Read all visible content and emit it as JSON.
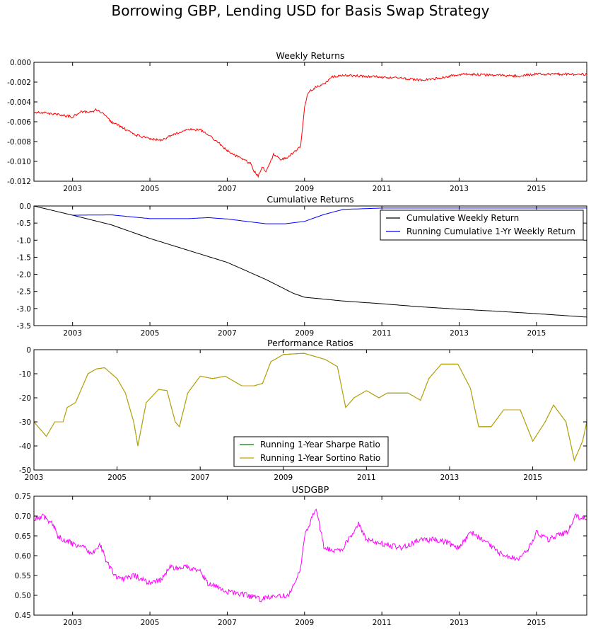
{
  "figure": {
    "title": "Borrowing GBP, Lending USD for Basis Swap Strategy"
  },
  "chart_data": [
    {
      "id": "p1",
      "type": "line",
      "title": "Weekly Returns",
      "xlim": [
        2002.0,
        2016.3
      ],
      "ylim": [
        -0.012,
        0.0
      ],
      "xticks": [
        2003,
        2005,
        2007,
        2009,
        2011,
        2013,
        2015
      ],
      "yticks": [
        0.0,
        -0.002,
        -0.004,
        -0.006,
        -0.008,
        -0.01,
        -0.012
      ],
      "ytick_labels": [
        "0.000",
        "-0.002",
        "-0.004",
        "-0.006",
        "-0.008",
        "-0.010",
        "-0.012"
      ],
      "legend": null,
      "series": [
        {
          "color": "#ff0000",
          "noise": 0.00012,
          "points": [
            [
              2002.0,
              -0.005
            ],
            [
              2002.5,
              -0.0052
            ],
            [
              2003.0,
              -0.0055
            ],
            [
              2003.2,
              -0.005
            ],
            [
              2003.5,
              -0.005
            ],
            [
              2003.6,
              -0.0048
            ],
            [
              2003.8,
              -0.0052
            ],
            [
              2004.0,
              -0.006
            ],
            [
              2004.3,
              -0.0066
            ],
            [
              2004.6,
              -0.0073
            ],
            [
              2005.0,
              -0.0077
            ],
            [
              2005.3,
              -0.0079
            ],
            [
              2005.6,
              -0.0073
            ],
            [
              2006.0,
              -0.0068
            ],
            [
              2006.3,
              -0.0068
            ],
            [
              2006.5,
              -0.0073
            ],
            [
              2006.8,
              -0.0082
            ],
            [
              2007.0,
              -0.0089
            ],
            [
              2007.3,
              -0.0096
            ],
            [
              2007.6,
              -0.0102
            ],
            [
              2007.7,
              -0.011
            ],
            [
              2007.8,
              -0.0115
            ],
            [
              2007.9,
              -0.0105
            ],
            [
              2008.0,
              -0.011
            ],
            [
              2008.2,
              -0.0093
            ],
            [
              2008.4,
              -0.0098
            ],
            [
              2008.6,
              -0.0095
            ],
            [
              2008.8,
              -0.0088
            ],
            [
              2008.9,
              -0.0085
            ],
            [
              2009.0,
              -0.0045
            ],
            [
              2009.1,
              -0.003
            ],
            [
              2009.3,
              -0.0025
            ],
            [
              2009.5,
              -0.0022
            ],
            [
              2009.7,
              -0.0015
            ],
            [
              2010.0,
              -0.0013
            ],
            [
              2011.0,
              -0.0015
            ],
            [
              2011.5,
              -0.0016
            ],
            [
              2012.0,
              -0.0018
            ],
            [
              2012.5,
              -0.0016
            ],
            [
              2013.0,
              -0.0012
            ],
            [
              2014.0,
              -0.0013
            ],
            [
              2014.5,
              -0.0014
            ],
            [
              2015.0,
              -0.0012
            ],
            [
              2016.3,
              -0.0012
            ]
          ]
        }
      ]
    },
    {
      "id": "p2",
      "type": "line",
      "title": "Cumulative Returns",
      "xlim": [
        2002.0,
        2016.3
      ],
      "ylim": [
        -3.5,
        0.0
      ],
      "xticks": [
        2003,
        2005,
        2007,
        2009,
        2011,
        2013,
        2015
      ],
      "yticks": [
        0.0,
        -0.5,
        -1.0,
        -1.5,
        -2.0,
        -2.5,
        -3.0,
        -3.5
      ],
      "ytick_labels": [
        "0.0",
        "-0.5",
        "-1.0",
        "-1.5",
        "-2.0",
        "-2.5",
        "-3.0",
        "-3.5"
      ],
      "legend": {
        "position": "upper-right"
      },
      "series": [
        {
          "name": "Cumulative Weekly Return",
          "color": "#000000",
          "noise": 0,
          "points": [
            [
              2002.0,
              0.0
            ],
            [
              2003.0,
              -0.27
            ],
            [
              2004.0,
              -0.55
            ],
            [
              2005.0,
              -0.95
            ],
            [
              2006.0,
              -1.3
            ],
            [
              2007.0,
              -1.65
            ],
            [
              2008.0,
              -2.15
            ],
            [
              2008.7,
              -2.55
            ],
            [
              2009.0,
              -2.67
            ],
            [
              2010.0,
              -2.78
            ],
            [
              2011.0,
              -2.86
            ],
            [
              2012.0,
              -2.95
            ],
            [
              2013.0,
              -3.02
            ],
            [
              2014.0,
              -3.08
            ],
            [
              2015.0,
              -3.15
            ],
            [
              2016.3,
              -3.25
            ]
          ]
        },
        {
          "name": "Running Cumulative 1-Yr Weekly Return",
          "color": "#0000ff",
          "noise": 0,
          "points": [
            [
              2003.0,
              -0.27
            ],
            [
              2004.0,
              -0.26
            ],
            [
              2005.0,
              -0.37
            ],
            [
              2006.0,
              -0.37
            ],
            [
              2006.5,
              -0.34
            ],
            [
              2007.0,
              -0.38
            ],
            [
              2008.0,
              -0.52
            ],
            [
              2008.5,
              -0.52
            ],
            [
              2009.0,
              -0.45
            ],
            [
              2009.5,
              -0.25
            ],
            [
              2010.0,
              -0.1
            ],
            [
              2011.0,
              -0.06
            ],
            [
              2016.3,
              -0.06
            ]
          ]
        }
      ]
    },
    {
      "id": "p3",
      "type": "line",
      "title": "Performance Ratios",
      "xlim": [
        2003.0,
        2016.3
      ],
      "ylim": [
        -50,
        0
      ],
      "xticks": [
        2003,
        2005,
        2007,
        2009,
        2011,
        2013,
        2015
      ],
      "yticks": [
        0,
        -10,
        -20,
        -30,
        -40,
        -50
      ],
      "ytick_labels": [
        "0",
        "-10",
        "-20",
        "-30",
        "-40",
        "-50"
      ],
      "legend": {
        "position": "lower-center"
      },
      "series": [
        {
          "name": "Running 1-Year Sharpe Ratio",
          "color": "#008000",
          "noise": 0,
          "points": [
            [
              2003.0,
              -30
            ],
            [
              2003.3,
              -36
            ],
            [
              2003.5,
              -30
            ],
            [
              2003.7,
              -30
            ],
            [
              2003.8,
              -24
            ],
            [
              2004.0,
              -22
            ],
            [
              2004.3,
              -10
            ],
            [
              2004.5,
              -8
            ],
            [
              2004.7,
              -7.5
            ],
            [
              2005.0,
              -12
            ],
            [
              2005.2,
              -18
            ],
            [
              2005.4,
              -30
            ],
            [
              2005.5,
              -40
            ],
            [
              2005.7,
              -22
            ],
            [
              2006.0,
              -16.5
            ],
            [
              2006.2,
              -17
            ],
            [
              2006.4,
              -30
            ],
            [
              2006.5,
              -32
            ],
            [
              2006.7,
              -18
            ],
            [
              2007.0,
              -11
            ],
            [
              2007.3,
              -12
            ],
            [
              2007.6,
              -11
            ],
            [
              2008.0,
              -15
            ],
            [
              2008.3,
              -15
            ],
            [
              2008.5,
              -14
            ],
            [
              2008.7,
              -5
            ],
            [
              2009.0,
              -2
            ],
            [
              2009.5,
              -1.5
            ],
            [
              2010.0,
              -4
            ],
            [
              2010.3,
              -7
            ],
            [
              2010.5,
              -24
            ],
            [
              2010.7,
              -20
            ],
            [
              2011.0,
              -17
            ],
            [
              2011.3,
              -20
            ],
            [
              2011.5,
              -18
            ],
            [
              2012.0,
              -18
            ],
            [
              2012.3,
              -21
            ],
            [
              2012.5,
              -12
            ],
            [
              2012.8,
              -6
            ],
            [
              2013.2,
              -6
            ],
            [
              2013.5,
              -16
            ],
            [
              2013.7,
              -32
            ],
            [
              2014.0,
              -32
            ],
            [
              2014.3,
              -25
            ],
            [
              2014.7,
              -25
            ],
            [
              2015.0,
              -38
            ],
            [
              2015.3,
              -30
            ],
            [
              2015.5,
              -23
            ],
            [
              2015.8,
              -30
            ],
            [
              2016.0,
              -46
            ],
            [
              2016.2,
              -38
            ],
            [
              2016.3,
              -30
            ]
          ]
        },
        {
          "name": "Running 1-Year Sortino Ratio",
          "color": "#c8a000",
          "noise": 0,
          "points": [
            [
              2003.0,
              -30
            ],
            [
              2003.3,
              -36
            ],
            [
              2003.5,
              -30
            ],
            [
              2003.7,
              -30
            ],
            [
              2003.8,
              -24
            ],
            [
              2004.0,
              -22
            ],
            [
              2004.3,
              -10
            ],
            [
              2004.5,
              -8
            ],
            [
              2004.7,
              -7.5
            ],
            [
              2005.0,
              -12
            ],
            [
              2005.2,
              -18
            ],
            [
              2005.4,
              -30
            ],
            [
              2005.5,
              -40
            ],
            [
              2005.7,
              -22
            ],
            [
              2006.0,
              -16.5
            ],
            [
              2006.2,
              -17
            ],
            [
              2006.4,
              -30
            ],
            [
              2006.5,
              -32
            ],
            [
              2006.7,
              -18
            ],
            [
              2007.0,
              -11
            ],
            [
              2007.3,
              -12
            ],
            [
              2007.6,
              -11
            ],
            [
              2008.0,
              -15
            ],
            [
              2008.3,
              -15
            ],
            [
              2008.5,
              -14
            ],
            [
              2008.7,
              -5
            ],
            [
              2009.0,
              -2
            ],
            [
              2009.5,
              -1.5
            ],
            [
              2010.0,
              -4
            ],
            [
              2010.3,
              -7
            ],
            [
              2010.5,
              -24
            ],
            [
              2010.7,
              -20
            ],
            [
              2011.0,
              -17
            ],
            [
              2011.3,
              -20
            ],
            [
              2011.5,
              -18
            ],
            [
              2012.0,
              -18
            ],
            [
              2012.3,
              -21
            ],
            [
              2012.5,
              -12
            ],
            [
              2012.8,
              -6
            ],
            [
              2013.2,
              -6
            ],
            [
              2013.5,
              -16
            ],
            [
              2013.7,
              -32
            ],
            [
              2014.0,
              -32
            ],
            [
              2014.3,
              -25
            ],
            [
              2014.7,
              -25
            ],
            [
              2015.0,
              -38
            ],
            [
              2015.3,
              -30
            ],
            [
              2015.5,
              -23
            ],
            [
              2015.8,
              -30
            ],
            [
              2016.0,
              -46
            ],
            [
              2016.2,
              -38
            ],
            [
              2016.3,
              -30
            ]
          ]
        }
      ]
    },
    {
      "id": "p4",
      "type": "line",
      "title": "USDGBP",
      "xlim": [
        2002.0,
        2016.3
      ],
      "ylim": [
        0.45,
        0.75
      ],
      "xticks": [
        2003,
        2005,
        2007,
        2009,
        2011,
        2013,
        2015
      ],
      "yticks": [
        0.75,
        0.7,
        0.65,
        0.6,
        0.55,
        0.5,
        0.45
      ],
      "ytick_labels": [
        "0.75",
        "0.70",
        "0.65",
        "0.60",
        "0.55",
        "0.50",
        "0.45"
      ],
      "legend": null,
      "series": [
        {
          "color": "#ff00ff",
          "noise": 0.007,
          "points": [
            [
              2002.0,
              0.69
            ],
            [
              2002.2,
              0.7
            ],
            [
              2002.5,
              0.68
            ],
            [
              2002.6,
              0.65
            ],
            [
              2003.0,
              0.63
            ],
            [
              2003.3,
              0.62
            ],
            [
              2003.5,
              0.6
            ],
            [
              2003.7,
              0.63
            ],
            [
              2003.9,
              0.58
            ],
            [
              2004.1,
              0.55
            ],
            [
              2004.3,
              0.54
            ],
            [
              2004.6,
              0.55
            ],
            [
              2005.0,
              0.53
            ],
            [
              2005.3,
              0.54
            ],
            [
              2005.5,
              0.57
            ],
            [
              2006.0,
              0.57
            ],
            [
              2006.3,
              0.56
            ],
            [
              2006.5,
              0.53
            ],
            [
              2006.8,
              0.52
            ],
            [
              2007.0,
              0.51
            ],
            [
              2007.5,
              0.5
            ],
            [
              2007.9,
              0.49
            ],
            [
              2008.2,
              0.5
            ],
            [
              2008.6,
              0.5
            ],
            [
              2008.9,
              0.57
            ],
            [
              2009.0,
              0.65
            ],
            [
              2009.2,
              0.7
            ],
            [
              2009.3,
              0.72
            ],
            [
              2009.5,
              0.62
            ],
            [
              2009.8,
              0.61
            ],
            [
              2010.0,
              0.62
            ],
            [
              2010.4,
              0.68
            ],
            [
              2010.6,
              0.64
            ],
            [
              2011.0,
              0.63
            ],
            [
              2011.5,
              0.62
            ],
            [
              2012.0,
              0.64
            ],
            [
              2012.5,
              0.64
            ],
            [
              2013.0,
              0.62
            ],
            [
              2013.3,
              0.66
            ],
            [
              2013.6,
              0.64
            ],
            [
              2014.0,
              0.61
            ],
            [
              2014.5,
              0.59
            ],
            [
              2014.8,
              0.62
            ],
            [
              2015.0,
              0.66
            ],
            [
              2015.3,
              0.64
            ],
            [
              2015.8,
              0.66
            ],
            [
              2016.0,
              0.7
            ],
            [
              2016.3,
              0.69
            ]
          ]
        }
      ]
    }
  ]
}
